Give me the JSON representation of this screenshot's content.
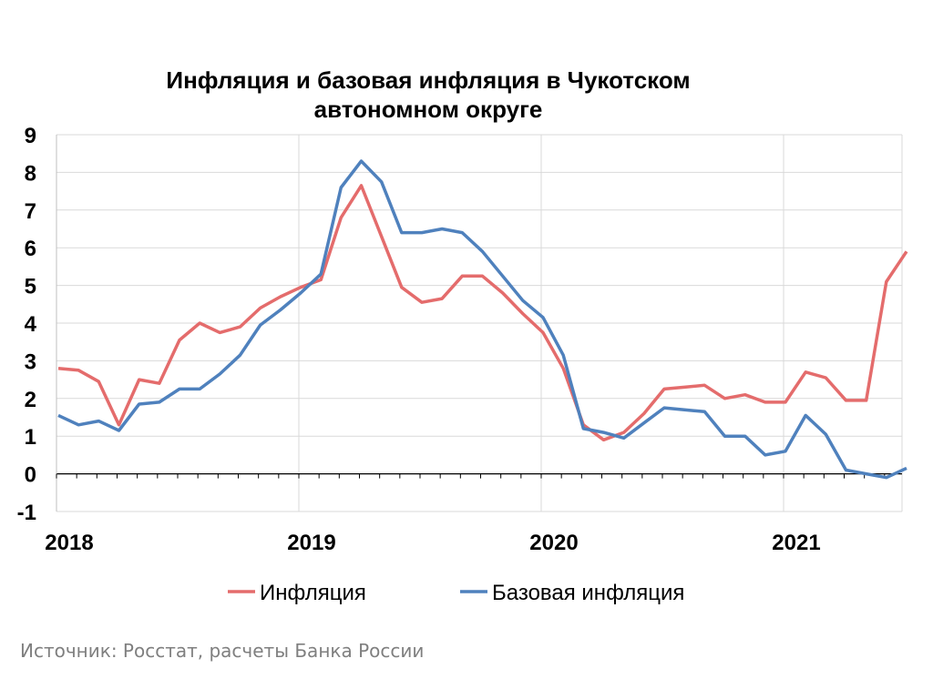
{
  "chart_data": {
    "type": "line",
    "title_line1": "Инфляция и базовая инфляция в Чукотском",
    "title_line2": "автономном округе",
    "xlabel": "",
    "ylabel": "",
    "x_ticks": [
      "2018",
      "2019",
      "2020",
      "2021"
    ],
    "y_ticks": [
      "-1",
      "0",
      "1",
      "2",
      "3",
      "4",
      "5",
      "6",
      "7",
      "8",
      "9"
    ],
    "ylim": [
      -1,
      9
    ],
    "grid": true,
    "legend_position": "bottom",
    "x_note": "monthly observations, Jan 2018 – Jul 2021",
    "series": [
      {
        "name": "Инфляция",
        "color": "#e46c6c",
        "values": [
          2.8,
          2.75,
          2.45,
          1.3,
          2.5,
          2.4,
          3.55,
          4.0,
          3.75,
          3.9,
          4.4,
          4.7,
          4.95,
          5.15,
          6.8,
          7.65,
          6.3,
          4.95,
          4.55,
          4.65,
          5.25,
          5.25,
          4.8,
          4.25,
          3.75,
          2.8,
          1.3,
          0.9,
          1.1,
          1.6,
          2.25,
          2.3,
          2.35,
          2.0,
          2.1,
          1.9,
          1.9,
          2.7,
          2.55,
          1.95,
          1.95,
          5.1,
          5.9
        ]
      },
      {
        "name": "Базовая инфляция",
        "color": "#4f81bd",
        "values": [
          1.55,
          1.3,
          1.4,
          1.15,
          1.85,
          1.9,
          2.25,
          2.25,
          2.65,
          3.15,
          3.95,
          4.35,
          4.8,
          5.3,
          7.6,
          8.3,
          7.75,
          6.4,
          6.4,
          6.5,
          6.4,
          5.9,
          5.25,
          4.6,
          4.15,
          3.15,
          1.2,
          1.1,
          0.95,
          1.35,
          1.75,
          1.7,
          1.65,
          1.0,
          1.0,
          0.5,
          0.6,
          1.55,
          1.05,
          0.1,
          0.0,
          -0.1,
          0.15
        ]
      }
    ]
  },
  "source_note": "Источник: Росстат, расчеты Банка России"
}
